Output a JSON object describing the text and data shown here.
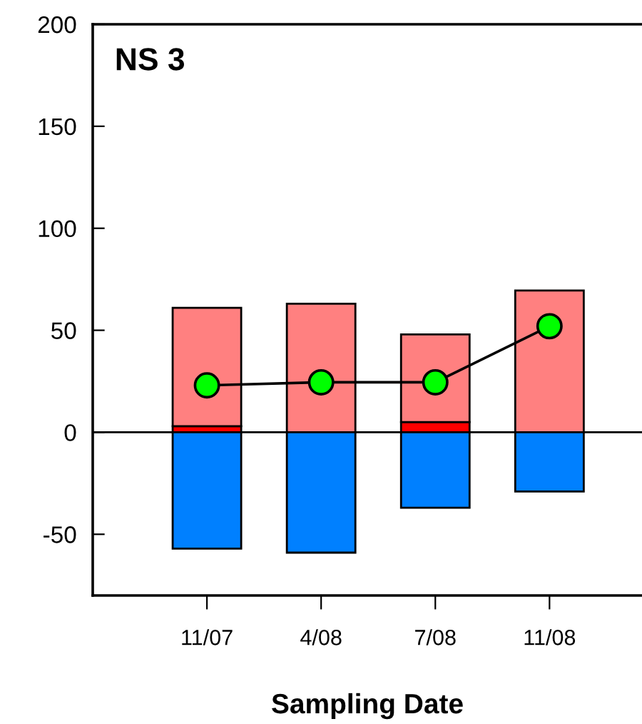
{
  "chart_data": {
    "type": "bar",
    "stacked": true,
    "title": "NS 3",
    "xlabel": "Sampling Date",
    "categories": [
      "11/07",
      "4/08",
      "7/08",
      "11/08"
    ],
    "series": [
      {
        "color": "#ff0000",
        "values": [
          3,
          null,
          5,
          null
        ]
      },
      {
        "color": "#ff8080",
        "values": [
          58,
          63,
          43,
          69.5
        ]
      },
      {
        "color": "#0080ff",
        "values": [
          -57,
          -59,
          -37,
          -29
        ]
      },
      {
        "type": "line",
        "color": "#00ff00",
        "marker": "circle",
        "values": [
          23,
          24.5,
          24.5,
          52
        ]
      }
    ],
    "ylim": [
      -80,
      200
    ],
    "yticks": [
      -50,
      0,
      50,
      100,
      150,
      200
    ],
    "ref_lines": [
      {
        "axis": "y",
        "value": 0,
        "color": "#000000"
      }
    ],
    "grid": false,
    "legend": false
  }
}
